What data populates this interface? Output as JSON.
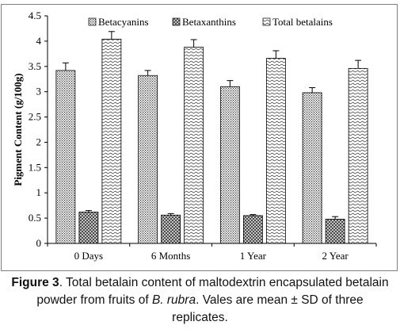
{
  "chart_data": {
    "type": "bar",
    "categories": [
      "0 Days",
      "6 Months",
      "1 Year",
      "2 Year"
    ],
    "series": [
      {
        "name": "Betacyanins",
        "values": [
          3.42,
          3.32,
          3.1,
          2.98
        ],
        "errors": [
          0.15,
          0.1,
          0.12,
          0.1
        ]
      },
      {
        "name": "Betaxanthins",
        "values": [
          0.62,
          0.56,
          0.55,
          0.48
        ],
        "errors": [
          0.03,
          0.03,
          0.02,
          0.05
        ]
      },
      {
        "name": "Total betalains",
        "values": [
          4.04,
          3.88,
          3.66,
          3.46
        ],
        "errors": [
          0.15,
          0.15,
          0.15,
          0.16
        ]
      }
    ],
    "title": "",
    "xlabel": "",
    "ylabel": "Pigment Content (g/100g)",
    "ylim": [
      0,
      4.5
    ],
    "yticks": [
      "0",
      "0.5",
      "1",
      "1.5",
      "2",
      "2.5",
      "3",
      "3.5",
      "4",
      "4.5"
    ],
    "legend_position": "top",
    "grid": false
  },
  "caption": {
    "label": "Figure 3",
    "text_1": ". Total betalain content of maltodextrin encapsulated betalain powder from fruits of ",
    "species": "B. rubra",
    "text_2": ". Vales are mean ± SD of three replicates."
  }
}
